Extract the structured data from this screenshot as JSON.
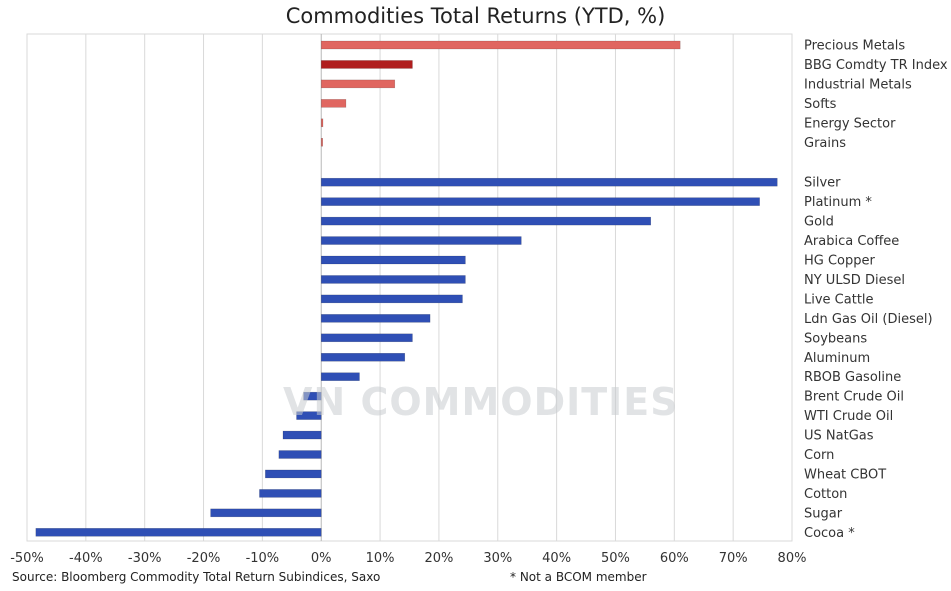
{
  "watermark": "VN COMMODITIES",
  "source": "Source: Bloomberg Commodity Total Return Subindices, Saxo",
  "footnote": "* Not a BCOM member",
  "colors": {
    "red": "#e06660",
    "dark_red": "#b01e1e",
    "blue": "#2f4fb5",
    "grid": "#d9d9d9"
  },
  "chart_data": {
    "type": "bar",
    "orientation": "horizontal",
    "title": "Commodities Total Returns (YTD, %)",
    "xlim": [
      -50,
      80
    ],
    "xticks": [
      -50,
      -40,
      -30,
      -20,
      -10,
      0,
      10,
      20,
      30,
      40,
      50,
      60,
      70,
      80
    ],
    "xtick_labels": [
      "-50%",
      "-40%",
      "-30%",
      "-20%",
      "-10%",
      "0%",
      "10%",
      "20%",
      "30%",
      "40%",
      "50%",
      "60%",
      "70%",
      "80%"
    ],
    "grid": "vertical",
    "groups": [
      {
        "color": "red",
        "items": [
          {
            "label": "Precious Metals",
            "value": 61,
            "color": "red"
          },
          {
            "label": "BBG Comdty TR Index",
            "value": 15.5,
            "color": "dark_red"
          },
          {
            "label": "Industrial Metals",
            "value": 12.5,
            "color": "red"
          },
          {
            "label": "Softs",
            "value": 4.2,
            "color": "red"
          },
          {
            "label": "Energy Sector",
            "value": 0.3,
            "color": "red"
          },
          {
            "label": "Grains",
            "value": 0.2,
            "color": "red"
          }
        ]
      },
      {
        "color": "blue",
        "items": [
          {
            "label": "Silver",
            "value": 77.5,
            "color": "blue"
          },
          {
            "label": "Platinum *",
            "value": 74.5,
            "color": "blue"
          },
          {
            "label": "Gold",
            "value": 56,
            "color": "blue"
          },
          {
            "label": "Arabica Coffee",
            "value": 34,
            "color": "blue"
          },
          {
            "label": "HG Copper",
            "value": 24.5,
            "color": "blue"
          },
          {
            "label": "NY ULSD Diesel",
            "value": 24.5,
            "color": "blue"
          },
          {
            "label": "Live Cattle",
            "value": 24,
            "color": "blue"
          },
          {
            "label": "Ldn Gas Oil (Diesel)",
            "value": 18.5,
            "color": "blue"
          },
          {
            "label": "Soybeans",
            "value": 15.5,
            "color": "blue"
          },
          {
            "label": "Aluminum",
            "value": 14.2,
            "color": "blue"
          },
          {
            "label": "RBOB Gasoline",
            "value": 6.5,
            "color": "blue"
          },
          {
            "label": "Brent Crude Oil",
            "value": -3,
            "color": "blue"
          },
          {
            "label": "WTI Crude Oil",
            "value": -4.2,
            "color": "blue"
          },
          {
            "label": "US NatGas",
            "value": -6.5,
            "color": "blue"
          },
          {
            "label": "Corn",
            "value": -7.2,
            "color": "blue"
          },
          {
            "label": "Wheat CBOT",
            "value": -9.5,
            "color": "blue"
          },
          {
            "label": "Cotton",
            "value": -10.5,
            "color": "blue"
          },
          {
            "label": "Sugar",
            "value": -18.8,
            "color": "blue"
          },
          {
            "label": "Cocoa *",
            "value": -48.5,
            "color": "blue"
          }
        ]
      }
    ]
  }
}
